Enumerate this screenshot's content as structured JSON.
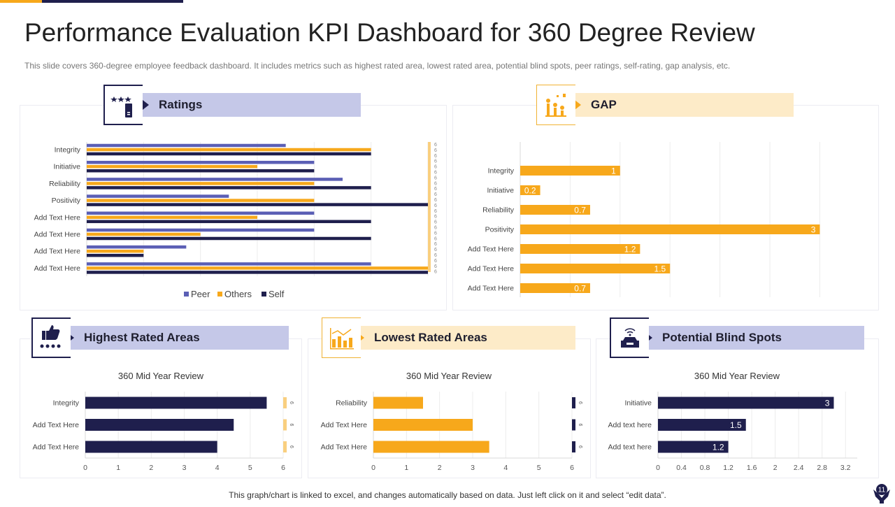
{
  "header": {
    "title": "Performance Evaluation KPI Dashboard for 360 Degree Review",
    "subtitle": "This slide covers 360-degree employee feedback dashboard. It includes metrics such as highest rated area, lowest rated area, potential blind spots, peer ratings, self-rating, gap analysis, etc."
  },
  "panels": {
    "ratings": "Ratings",
    "gap": "GAP",
    "highest": "Highest Rated Areas",
    "lowest": "Lowest Rated Areas",
    "blind": "Potential Blind Spots"
  },
  "icons": {
    "ratings": "rating-stars-icon",
    "gap": "growth-coins-icon",
    "highest": "thumbs-up-stars-icon",
    "lowest": "bar-chart-icon",
    "blind": "car-wifi-icon"
  },
  "footer": "This graph/chart is linked to excel,  and changes automatically based on data. Just left click on it and select “edit data”.",
  "page_number": "11",
  "colors": {
    "navy": "#1f1f4d",
    "peer": "#5b5fb5",
    "gold": "#f7a81b",
    "pale_gold": "#f9cf7f"
  },
  "chart_data": [
    {
      "id": "ratings",
      "type": "bar",
      "orientation": "horizontal",
      "title": "",
      "categories": [
        "Integrity",
        "Initiative",
        "Reliability",
        "Positivity",
        "Add Text Here",
        "Add Text Here",
        "Add Text Here",
        "Add Text Here"
      ],
      "series": [
        {
          "name": "Peer",
          "color": "#5b5fb5",
          "values": [
            3.5,
            4,
            4.5,
            2.5,
            4,
            4,
            1.75,
            5
          ]
        },
        {
          "name": "Others",
          "color": "#f7a81b",
          "values": [
            5,
            3,
            4,
            4,
            3,
            2,
            1,
            6
          ]
        },
        {
          "name": "Self",
          "color": "#1f1f4d",
          "values": [
            5,
            4,
            5,
            6,
            5,
            5,
            1,
            6
          ]
        }
      ],
      "max_series": {
        "color": "#f9cf7f",
        "value": 6,
        "labels": [
          "6",
          "6",
          "6",
          "6",
          "6",
          "6",
          "6",
          "6",
          "6",
          "6",
          "6",
          "6",
          "6",
          "6",
          "6",
          "6",
          "6",
          "6",
          "6",
          "6",
          "6",
          "6",
          "6",
          "6"
        ]
      },
      "xlim": [
        0,
        6
      ],
      "legend": "bottom",
      "grid": true
    },
    {
      "id": "gap",
      "type": "bar",
      "orientation": "horizontal",
      "title": "",
      "categories": [
        "Integrity",
        "Initiative",
        "Reliability",
        "Positivity",
        "Add Text Here",
        "Add Text Here",
        "Add Text Here"
      ],
      "values": [
        1,
        0.2,
        0.7,
        3,
        1.2,
        1.5,
        0.7
      ],
      "labels": [
        "1",
        "0.2",
        "0.7",
        "3",
        "1.2",
        "1.5",
        "0.7"
      ],
      "color": "#f7a81b",
      "xlim": [
        0,
        3.2
      ],
      "grid": true
    },
    {
      "id": "highest",
      "type": "bar",
      "orientation": "horizontal",
      "title": "360 Mid Year Review",
      "categories": [
        "Integrity",
        "Add Text Here",
        "Add Text Here"
      ],
      "values": [
        5.5,
        4.5,
        4
      ],
      "color": "#1f1f4d",
      "max_series": {
        "color": "#f9cf7f",
        "value": 6,
        "labels": [
          "6",
          "6",
          "6"
        ]
      },
      "xlim": [
        0,
        6
      ],
      "xticks": [
        "0",
        "1",
        "2",
        "3",
        "4",
        "5",
        "6"
      ],
      "grid": true
    },
    {
      "id": "lowest",
      "type": "bar",
      "orientation": "horizontal",
      "title": "360 Mid Year Review",
      "categories": [
        "Reliability",
        "Add Text Here",
        "Add Text Here"
      ],
      "values": [
        1.5,
        3,
        3.5
      ],
      "color": "#f7a81b",
      "max_series": {
        "color": "#1f1f4d",
        "value": 6,
        "labels": [
          "6",
          "6",
          "6"
        ]
      },
      "xlim": [
        0,
        6
      ],
      "xticks": [
        "0",
        "1",
        "2",
        "3",
        "4",
        "5",
        "6"
      ],
      "grid": true
    },
    {
      "id": "blind",
      "type": "bar",
      "orientation": "horizontal",
      "title": "360 Mid Year Review",
      "categories": [
        "Initiative",
        "Add text here",
        "Add text here"
      ],
      "values": [
        3,
        1.5,
        1.2
      ],
      "labels": [
        "3",
        "1.5",
        "1.2"
      ],
      "color": "#1f1f4d",
      "xlim": [
        0,
        3.4
      ],
      "xticks": [
        "0",
        "0.4",
        "0.8",
        "1.2",
        "1.6",
        "2",
        "2.4",
        "2.8",
        "3.2"
      ],
      "grid": true
    }
  ]
}
